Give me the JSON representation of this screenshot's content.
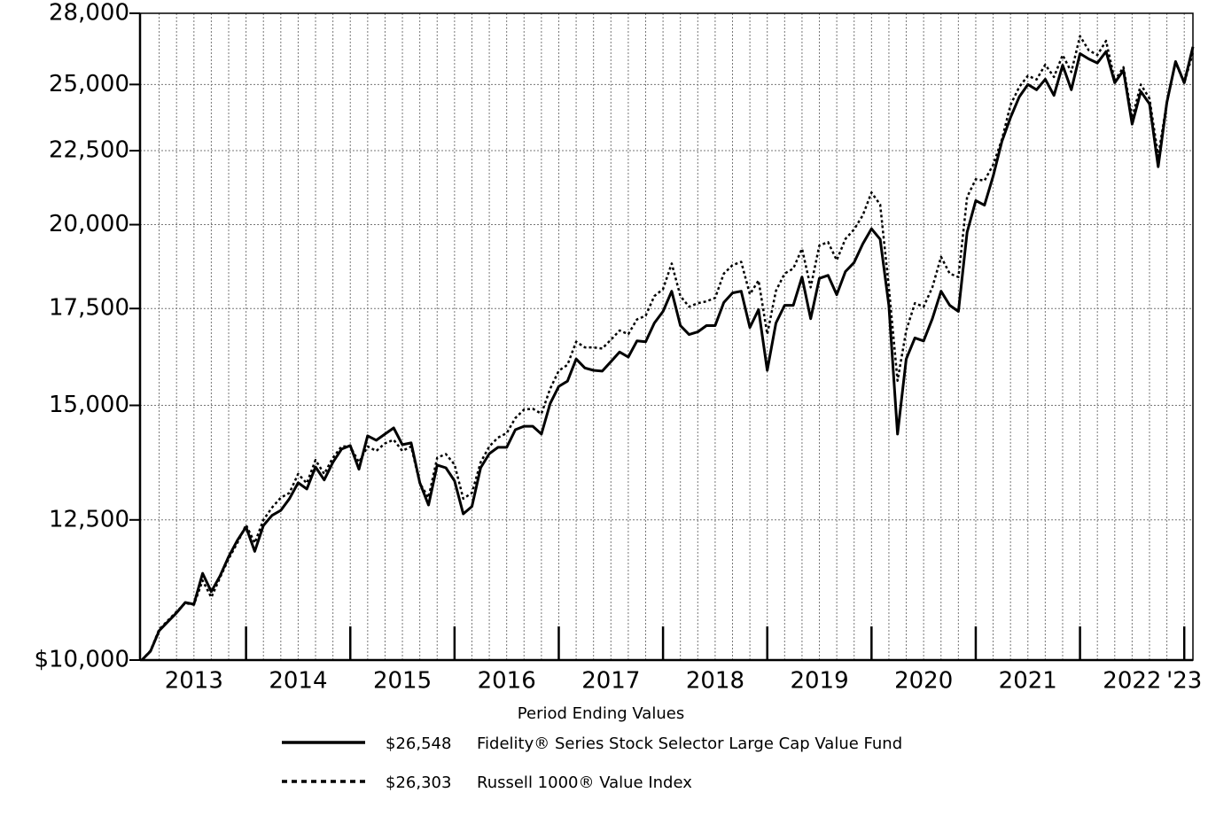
{
  "chart_data": {
    "type": "line",
    "log_scale": true,
    "grid": true,
    "ylim": [
      10000,
      28000
    ],
    "yticks": [
      {
        "value": 10000,
        "label": "$10,000"
      },
      {
        "value": 12500,
        "label": "12,500"
      },
      {
        "value": 15000,
        "label": "15,000"
      },
      {
        "value": 17500,
        "label": "17,500"
      },
      {
        "value": 20000,
        "label": "20,000"
      },
      {
        "value": 22500,
        "label": "22,500"
      },
      {
        "value": 25000,
        "label": "25,000"
      },
      {
        "value": 28000,
        "label": "28,000"
      }
    ],
    "categories": [
      null,
      null,
      null,
      null,
      null,
      null,
      "2013",
      null,
      null,
      null,
      null,
      null,
      null,
      null,
      null,
      null,
      null,
      null,
      "2014",
      null,
      null,
      null,
      null,
      null,
      null,
      null,
      null,
      null,
      null,
      null,
      "2015",
      null,
      null,
      null,
      null,
      null,
      null,
      null,
      null,
      null,
      null,
      null,
      "2016",
      null,
      null,
      null,
      null,
      null,
      null,
      null,
      null,
      null,
      null,
      null,
      "2017",
      null,
      null,
      null,
      null,
      null,
      null,
      null,
      null,
      null,
      null,
      null,
      "2018",
      null,
      null,
      null,
      null,
      null,
      null,
      null,
      null,
      null,
      null,
      null,
      "2019",
      null,
      null,
      null,
      null,
      null,
      null,
      null,
      null,
      null,
      null,
      null,
      "2020",
      null,
      null,
      null,
      null,
      null,
      null,
      null,
      null,
      null,
      null,
      null,
      "2021",
      null,
      null,
      null,
      null,
      null,
      null,
      null,
      null,
      null,
      null,
      null,
      "2022",
      null,
      null,
      null,
      null,
      null,
      "'23",
      null
    ],
    "legend_title": "Period Ending Values",
    "series": [
      {
        "name": "Fidelity® Series Stock Selector Large Cap Value Fund",
        "color": "#000000",
        "dash": "solid",
        "end_label": "$26,548",
        "values": [
          10000,
          10140,
          10480,
          10630,
          10780,
          10960,
          10930,
          11480,
          11150,
          11430,
          11790,
          12100,
          12360,
          11890,
          12390,
          12590,
          12690,
          12930,
          13260,
          13130,
          13600,
          13320,
          13700,
          13990,
          14070,
          13550,
          14290,
          14190,
          14330,
          14470,
          14090,
          14130,
          13260,
          12800,
          13640,
          13580,
          13300,
          12620,
          12770,
          13580,
          13890,
          14030,
          14030,
          14430,
          14510,
          14510,
          14330,
          15040,
          15460,
          15590,
          16150,
          15920,
          15860,
          15840,
          16080,
          16330,
          16200,
          16620,
          16600,
          17100,
          17420,
          17990,
          17030,
          16790,
          16860,
          17030,
          17030,
          17670,
          17940,
          17990,
          16980,
          17470,
          15860,
          17100,
          17590,
          17590,
          18400,
          17220,
          18360,
          18450,
          17890,
          18560,
          18830,
          19400,
          19870,
          19540,
          17590,
          14330,
          16150,
          16700,
          16620,
          17220,
          17990,
          17590,
          17420,
          19760,
          20780,
          20630,
          21610,
          22830,
          23720,
          24510,
          25000,
          24790,
          25210,
          24570,
          25780,
          24790,
          26260,
          26040,
          25870,
          26350,
          25070,
          25570,
          23470,
          24720,
          24240,
          21930,
          24300,
          25930,
          25070,
          26548
        ]
      },
      {
        "name": "Russell 1000® Value Index",
        "color": "#000000",
        "dash": "dotted",
        "end_label": "$26,303",
        "values": [
          10000,
          10150,
          10500,
          10650,
          10800,
          10950,
          10920,
          11350,
          11050,
          11400,
          11750,
          12050,
          12400,
          12050,
          12500,
          12750,
          12950,
          13050,
          13450,
          13250,
          13750,
          13450,
          13800,
          14050,
          14050,
          13700,
          14050,
          13950,
          14120,
          14200,
          13950,
          14050,
          13250,
          12950,
          13800,
          13880,
          13650,
          12930,
          13050,
          13700,
          14050,
          14250,
          14350,
          14700,
          14900,
          14920,
          14800,
          15400,
          15850,
          16000,
          16600,
          16450,
          16450,
          16420,
          16650,
          16900,
          16800,
          17200,
          17300,
          17850,
          18050,
          18800,
          17850,
          17550,
          17650,
          17700,
          17800,
          18500,
          18750,
          18850,
          17900,
          18300,
          16800,
          18000,
          18500,
          18650,
          19250,
          18100,
          19350,
          19450,
          18900,
          19550,
          19850,
          20300,
          21050,
          20650,
          18100,
          15600,
          16900,
          17650,
          17550,
          18100,
          19000,
          18500,
          18400,
          20900,
          21500,
          21450,
          22000,
          22900,
          24200,
          24900,
          25350,
          25200,
          25800,
          25300,
          26200,
          25500,
          27000,
          26400,
          26200,
          26800,
          25150,
          25700,
          23700,
          25000,
          24450,
          22300,
          24300,
          25900,
          25050,
          26303
        ]
      }
    ]
  }
}
